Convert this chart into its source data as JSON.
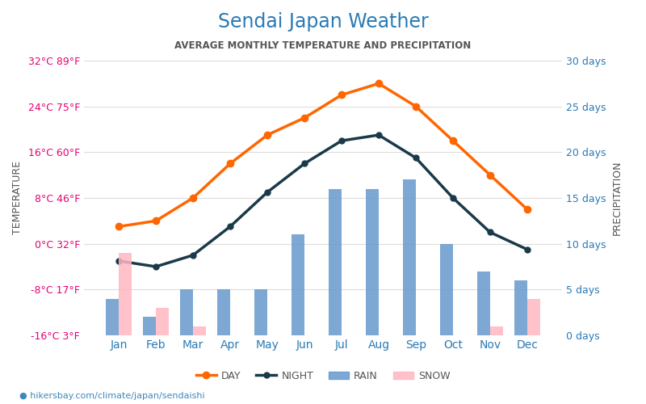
{
  "title": "Sendai Japan Weather",
  "subtitle": "AVERAGE MONTHLY TEMPERATURE AND PRECIPITATION",
  "months": [
    "Jan",
    "Feb",
    "Mar",
    "Apr",
    "May",
    "Jun",
    "Jul",
    "Aug",
    "Sep",
    "Oct",
    "Nov",
    "Dec"
  ],
  "day_temp": [
    3,
    4,
    8,
    14,
    19,
    22,
    26,
    28,
    24,
    18,
    12,
    6
  ],
  "night_temp": [
    -3,
    -4,
    -2,
    3,
    9,
    14,
    18,
    19,
    15,
    8,
    2,
    -1
  ],
  "rain_days": [
    4,
    2,
    5,
    5,
    5,
    11,
    16,
    16,
    17,
    10,
    7,
    6
  ],
  "snow_days": [
    9,
    3,
    1,
    0,
    0,
    0,
    0,
    0,
    0,
    0,
    1,
    4
  ],
  "temp_yticks_c": [
    -16,
    -8,
    0,
    8,
    16,
    24,
    32
  ],
  "temp_yticks_f": [
    3,
    17,
    32,
    46,
    60,
    75,
    89
  ],
  "precip_yticks": [
    0,
    5,
    10,
    15,
    20,
    25,
    30
  ],
  "temp_min": -16,
  "temp_max": 32,
  "precip_min": 0,
  "precip_max": 30,
  "day_color": "#ff6600",
  "night_color": "#1a3a4a",
  "rain_color": "#6699cc",
  "snow_color": "#ffb6c1",
  "title_color": "#2a7ab5",
  "subtitle_color": "#555555",
  "left_label_color": "#e60073",
  "right_label_color": "#2a7ab5",
  "ylabel_left": "TEMPERATURE",
  "ylabel_right": "PRECIPITATION",
  "watermark": "hikersbay.com/climate/japan/sendaishi",
  "background_color": "#ffffff",
  "grid_color": "#dddddd"
}
